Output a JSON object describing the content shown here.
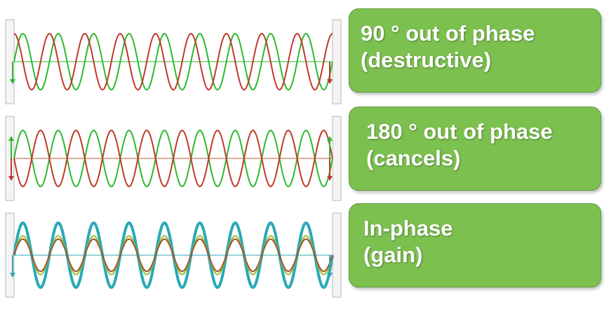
{
  "panels": [
    {
      "id": "panel-90",
      "line1": "90 ° out of phase",
      "line2": "(destructive)",
      "phase_shift_degrees": 90,
      "waves": [
        {
          "color": "#2eb82e",
          "amplitude": 1.0,
          "phase": 0
        },
        {
          "color": "#c0392b",
          "amplitude": 1.0,
          "phase": 90
        }
      ],
      "axis_color": "#2eb82e",
      "arrow_colors": [
        "#2eb82e",
        "#c0392b"
      ]
    },
    {
      "id": "panel-180",
      "line1": "180 ° out of phase",
      "line2": "(cancels)",
      "phase_shift_degrees": 180,
      "waves": [
        {
          "color": "#2eb82e",
          "amplitude": 1.0,
          "phase": 0
        },
        {
          "color": "#c0392b",
          "amplitude": 1.0,
          "phase": 180
        }
      ],
      "axis_color": "#b35a3a",
      "arrow_colors": [
        "#2eb82e",
        "#c0392b"
      ]
    },
    {
      "id": "panel-0",
      "line1": "In-phase",
      "line2": "(gain)",
      "phase_shift_degrees": 0,
      "waves": [
        {
          "color": "#2aa8b8",
          "amplitude": 1.0,
          "phase": 0,
          "thick": true
        },
        {
          "color": "#9bbf2e",
          "amplitude": 0.6,
          "phase": 0
        },
        {
          "color": "#a0522d",
          "amplitude": 0.5,
          "phase": 0
        }
      ],
      "axis_color": "#2aa8b8",
      "arrow_colors": [
        "#2aa8b8",
        "#2aa8b8"
      ]
    }
  ],
  "cycles_per_panel": 9
}
